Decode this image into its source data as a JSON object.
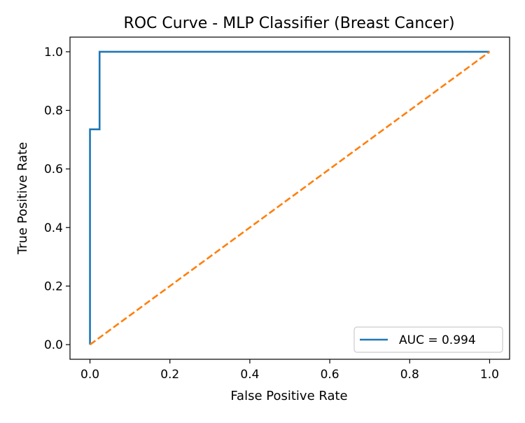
{
  "chart_data": {
    "type": "line",
    "title": "ROC Curve - MLP Classifier (Breast Cancer)",
    "xlabel": "False Positive Rate",
    "ylabel": "True Positive Rate",
    "xlim": [
      -0.05,
      1.05
    ],
    "ylim": [
      -0.05,
      1.05
    ],
    "xticks": [
      0.0,
      0.2,
      0.4,
      0.6,
      0.8,
      1.0
    ],
    "yticks": [
      0.0,
      0.2,
      0.4,
      0.6,
      0.8,
      1.0
    ],
    "xtick_labels": [
      "0.0",
      "0.2",
      "0.4",
      "0.6",
      "0.8",
      "1.0"
    ],
    "ytick_labels": [
      "0.0",
      "0.2",
      "0.4",
      "0.6",
      "0.8",
      "1.0"
    ],
    "grid": false,
    "legend_position": "lower-right",
    "series": [
      {
        "name": "AUC = 0.994",
        "color": "#1f77b4",
        "style": "solid",
        "x": [
          0.0,
          0.0,
          0.0,
          0.024,
          0.024,
          1.0
        ],
        "y": [
          0.0,
          0.0,
          0.735,
          0.735,
          1.0,
          1.0
        ]
      },
      {
        "color": "#ff7f0e",
        "style": "dashed",
        "x": [
          0.0,
          1.0
        ],
        "y": [
          0.0,
          1.0
        ]
      }
    ]
  }
}
